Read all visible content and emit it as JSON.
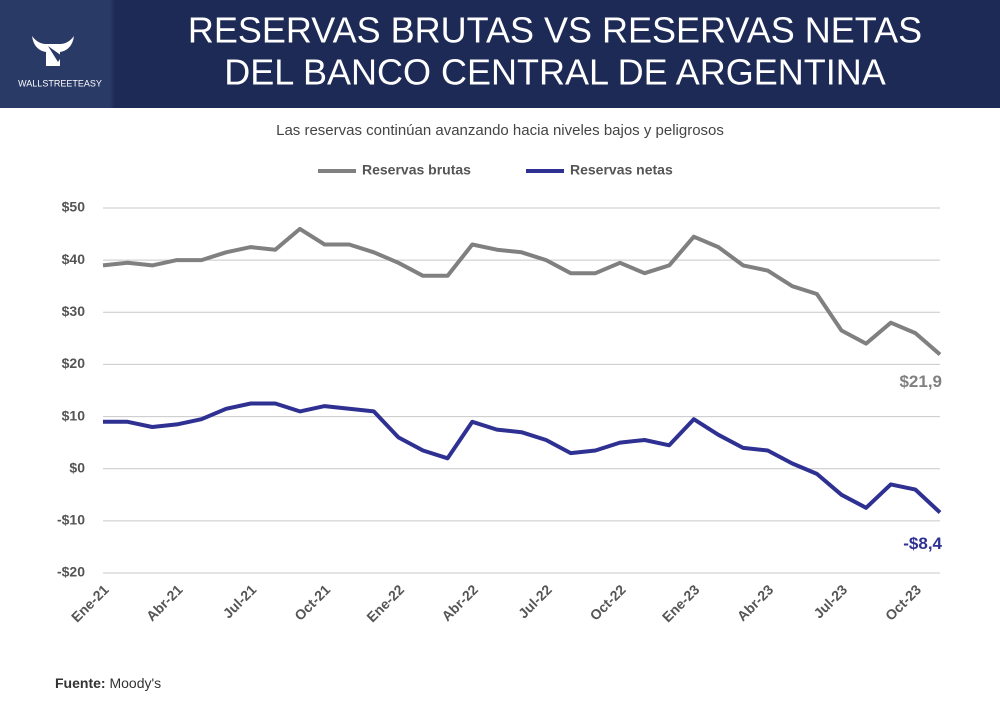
{
  "header": {
    "brand": "WALLSTREETEASY",
    "title_lines": [
      "RESERVAS BRUTAS VS RESERVAS NETAS",
      "DEL BANCO CENTRAL DE ARGENTINA"
    ]
  },
  "chart_data": {
    "type": "line",
    "subtitle": "Las reservas continúan avanzando hacia niveles bajos y peligrosos",
    "categories": [
      "Ene-21",
      null,
      null,
      "Abr-21",
      null,
      null,
      "Jul-21",
      null,
      null,
      "Oct-21",
      null,
      null,
      "Ene-22",
      null,
      null,
      "Abr-22",
      null,
      null,
      "Jul-22",
      null,
      null,
      "Oct-22",
      null,
      null,
      "Ene-23",
      null,
      null,
      "Abr-23",
      null,
      null,
      "Jul-23",
      null,
      null,
      "Oct-23",
      null
    ],
    "series": [
      {
        "name": "Reservas brutas",
        "color": "#808080",
        "values": [
          39,
          39.5,
          39,
          40,
          40,
          41.5,
          42.5,
          42,
          46,
          43,
          43,
          41.5,
          39.5,
          37,
          37,
          43,
          42,
          41.5,
          40,
          37.5,
          37.5,
          39.5,
          37.5,
          39,
          44.5,
          42.5,
          39,
          38,
          35,
          33.5,
          26.5,
          24,
          28,
          26,
          21.9
        ],
        "value_labels": [
          null,
          null,
          null,
          null,
          null,
          null,
          null,
          null,
          null,
          null,
          null,
          null,
          null,
          null,
          null,
          null,
          null,
          null,
          null,
          null,
          null,
          null,
          null,
          null,
          null,
          null,
          null,
          null,
          null,
          null,
          null,
          null,
          null,
          null,
          "$21,9"
        ]
      },
      {
        "name": "Reservas netas",
        "color": "#2e3192",
        "values": [
          9,
          9,
          8,
          8.5,
          9.5,
          11.5,
          12.5,
          12.5,
          11,
          12,
          11.5,
          11,
          6,
          3.5,
          2,
          9,
          7.5,
          7,
          5.5,
          3,
          3.5,
          5,
          5.5,
          4.5,
          9.5,
          6.5,
          4,
          3.5,
          1,
          -1,
          -5,
          -7.5,
          -3,
          -4,
          -8.4
        ],
        "value_labels": [
          null,
          null,
          null,
          null,
          null,
          null,
          null,
          null,
          null,
          null,
          null,
          null,
          null,
          null,
          null,
          null,
          null,
          null,
          null,
          null,
          null,
          null,
          null,
          null,
          null,
          null,
          null,
          null,
          null,
          null,
          null,
          null,
          null,
          null,
          "-$8,4"
        ]
      }
    ],
    "ylim": [
      -20,
      50
    ],
    "yticks": [
      {
        "value": -20,
        "label": "-$20"
      },
      {
        "value": -10,
        "label": "-$10"
      },
      {
        "value": 0,
        "label": "$0"
      },
      {
        "value": 10,
        "label": "$10"
      },
      {
        "value": 20,
        "label": "$20"
      },
      {
        "value": 30,
        "label": "$30"
      },
      {
        "value": 40,
        "label": "$40"
      },
      {
        "value": 50,
        "label": "$50"
      }
    ],
    "grid": true,
    "legend": "top"
  },
  "footer": {
    "source_label": "Fuente:",
    "source": "Moody's"
  }
}
